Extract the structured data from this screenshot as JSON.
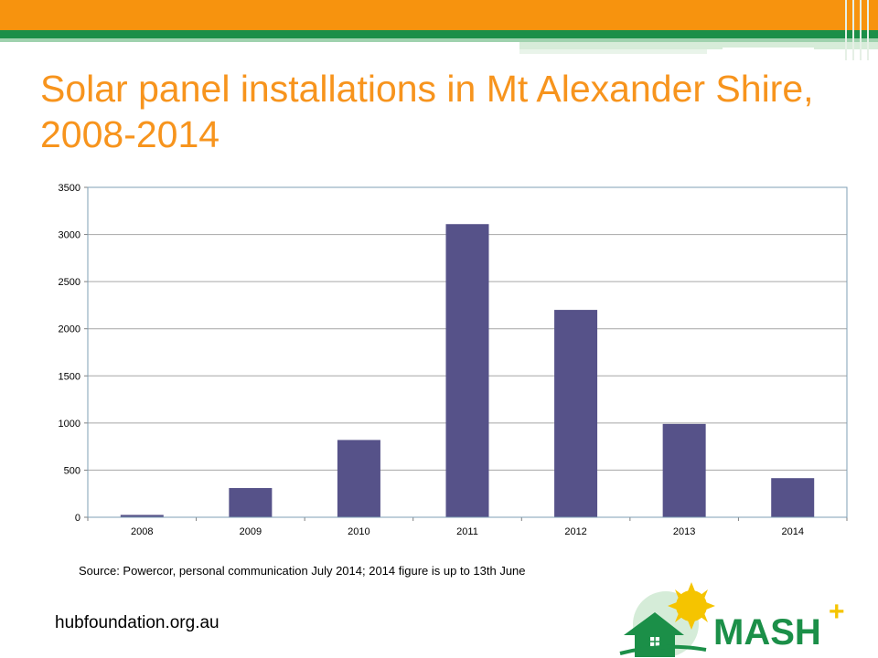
{
  "slide": {
    "title": "Solar panel installations in Mt Alexander Shire, 2008-2014",
    "source_note": "Source: Powercor, personal communication July 2014; 2014 figure is up to 13th June",
    "website": "hubfoundation.org.au",
    "logo_text": "MASH",
    "logo_plus": "+"
  },
  "colors": {
    "title": "#f7941d",
    "bar": "#565289",
    "brand_green": "#1b8f48",
    "brand_orange": "#f7930e"
  },
  "chart_data": {
    "type": "bar",
    "title": "",
    "xlabel": "",
    "ylabel": "",
    "categories": [
      "2008",
      "2009",
      "2010",
      "2011",
      "2012",
      "2013",
      "2014"
    ],
    "values": [
      25,
      310,
      820,
      3110,
      2200,
      990,
      415
    ],
    "ylim": [
      0,
      3500
    ],
    "yticks": [
      0,
      500,
      1000,
      1500,
      2000,
      2500,
      3000,
      3500
    ],
    "grid": true,
    "legend": "none"
  }
}
